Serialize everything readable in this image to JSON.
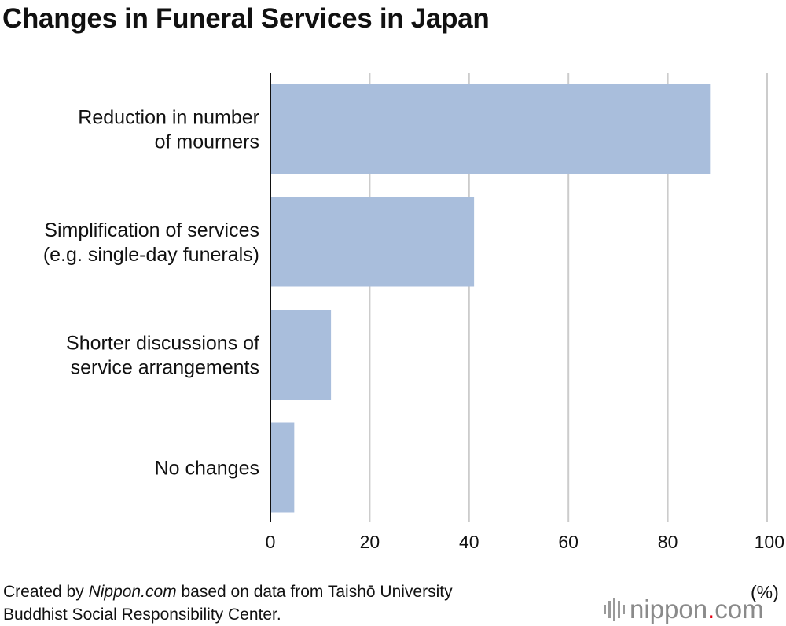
{
  "title": "Changes in Funeral Services in Japan",
  "chart_data": {
    "type": "bar",
    "orientation": "horizontal",
    "categories": [
      [
        "Reduction in number",
        "of mourners"
      ],
      [
        "Simplification of services",
        "(e.g. single-day funerals)"
      ],
      [
        "Shorter discussions of",
        "service arrangements"
      ],
      [
        "No changes"
      ]
    ],
    "values": [
      88.5,
      41,
      12.2,
      4.8
    ],
    "xlim": [
      0,
      100
    ],
    "xticks": [
      "0",
      "20",
      "40",
      "60",
      "80",
      "100"
    ],
    "xtick_values": [
      0,
      20,
      40,
      60,
      80,
      100
    ],
    "xlabel": "(%)",
    "grid": true,
    "bar_color": "#a9bedc",
    "grid_color": "#cccccc"
  },
  "footer": {
    "prefix": "Created by ",
    "brand": "Nippon.com",
    "suffix": " based on data from Taishō University",
    "line2": "Buddhist Social Responsibility Center."
  },
  "logo": {
    "name": "nippon",
    "dot": ".",
    "tld": "com",
    "accent": "#e60012"
  }
}
